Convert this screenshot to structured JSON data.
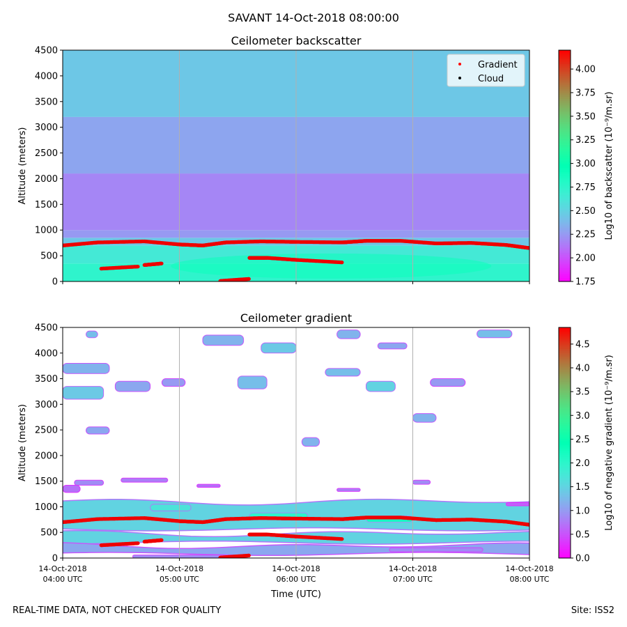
{
  "figure": {
    "suptitle": "SAVANT 14-Oct-2018 08:00:00",
    "footer_left": "REAL-TIME DATA, NOT CHECKED FOR QUALITY",
    "footer_right": "Site: ISS2"
  },
  "chart_data": [
    {
      "type": "heatmap",
      "title": "Ceilometer backscatter",
      "ylabel": "Altitude (meters)",
      "xlabel": "",
      "xlim_hours_utc": [
        4,
        8
      ],
      "ylim": [
        0,
        4500
      ],
      "yticks": [
        0,
        500,
        1000,
        1500,
        2000,
        2500,
        3000,
        3500,
        4000,
        4500
      ],
      "xtick_hours": [
        4,
        5,
        6,
        7,
        8
      ],
      "vertical_grid": true,
      "colorbar": {
        "label": "Log10 of backscatter (10⁻⁹/m.sr)",
        "range": [
          1.75,
          4.2
        ],
        "ticks": [
          "1.75",
          "2.00",
          "2.25",
          "2.50",
          "2.75",
          "3.00",
          "3.25",
          "3.50",
          "3.75",
          "4.00"
        ],
        "colormap": "rainbow"
      },
      "legend": {
        "placement": "upper-right",
        "entries": [
          {
            "label": "Gradient",
            "color": "#ff0000"
          },
          {
            "label": "Cloud",
            "color": "#000000"
          }
        ]
      },
      "layers": [
        {
          "alt_range": [
            0,
            350
          ],
          "value": 2.75
        },
        {
          "alt_range": [
            350,
            700
          ],
          "value": 2.65
        },
        {
          "alt_range": [
            700,
            850
          ],
          "value": 2.45
        },
        {
          "alt_range": [
            850,
            1000
          ],
          "value": 2.25
        },
        {
          "alt_range": [
            1000,
            2100
          ],
          "value": 2.18
        },
        {
          "alt_range": [
            2100,
            3200
          ],
          "value": 2.3
        },
        {
          "alt_range": [
            3200,
            4500
          ],
          "value": 2.45
        }
      ],
      "gradient_points": {
        "main_layer": [
          [
            4.0,
            700
          ],
          [
            4.3,
            760
          ],
          [
            4.7,
            780
          ],
          [
            5.0,
            720
          ],
          [
            5.2,
            700
          ],
          [
            5.4,
            760
          ],
          [
            5.7,
            780
          ],
          [
            6.0,
            770
          ],
          [
            6.4,
            760
          ],
          [
            6.6,
            790
          ],
          [
            6.9,
            790
          ],
          [
            7.2,
            740
          ],
          [
            7.5,
            750
          ],
          [
            7.8,
            710
          ],
          [
            8.0,
            650
          ]
        ],
        "lower_layer_1": [
          [
            4.33,
            250
          ],
          [
            4.65,
            290
          ]
        ],
        "lower_layer_2": [
          [
            4.7,
            320
          ],
          [
            4.85,
            350
          ]
        ],
        "lower_layer_3": [
          [
            5.6,
            460
          ],
          [
            5.75,
            460
          ],
          [
            6.0,
            420
          ],
          [
            6.4,
            370
          ]
        ],
        "near_ground": [
          [
            5.35,
            10
          ],
          [
            5.6,
            50
          ]
        ]
      }
    },
    {
      "type": "heatmap",
      "title": "Ceilometer gradient",
      "ylabel": "Altitude (meters)",
      "xlabel": "Time (UTC)",
      "xlim_hours_utc": [
        4,
        8
      ],
      "ylim": [
        0,
        4500
      ],
      "yticks": [
        0,
        500,
        1000,
        1500,
        2000,
        2500,
        3000,
        3500,
        4000,
        4500
      ],
      "xtick_hours": [
        4,
        5,
        6,
        7,
        8
      ],
      "xtick_labels": [
        [
          "14-Oct-2018",
          "04:00 UTC"
        ],
        [
          "14-Oct-2018",
          "05:00 UTC"
        ],
        [
          "14-Oct-2018",
          "06:00 UTC"
        ],
        [
          "14-Oct-2018",
          "07:00 UTC"
        ],
        [
          "14-Oct-2018",
          "08:00 UTC"
        ]
      ],
      "vertical_grid": true,
      "colorbar": {
        "label": "Log10 of negative gradient (10⁻⁹/m.sr)",
        "range": [
          0.0,
          4.85
        ],
        "ticks": [
          "0.0",
          "0.5",
          "1.0",
          "1.5",
          "2.0",
          "2.5",
          "3.0",
          "3.5",
          "4.0",
          "4.5"
        ],
        "colormap": "rainbow"
      },
      "bands": [
        {
          "t": [
            4.0,
            8.0
          ],
          "alt": [
            560,
            1100
          ],
          "value": 1.5,
          "wavy": true
        },
        {
          "t": [
            4.0,
            8.0
          ],
          "alt": [
            300,
            480
          ],
          "value": 1.5,
          "wavy": true
        },
        {
          "t": [
            4.0,
            8.0
          ],
          "alt": [
            80,
            240
          ],
          "value": 1.1,
          "wavy": true
        }
      ],
      "patches": [
        {
          "t": [
            4.0,
            4.4
          ],
          "alt": [
            3600,
            3800
          ],
          "value": 1.2
        },
        {
          "t": [
            4.0,
            4.35
          ],
          "alt": [
            3100,
            3350
          ],
          "value": 1.4
        },
        {
          "t": [
            4.2,
            4.3
          ],
          "alt": [
            4300,
            4430
          ],
          "value": 1.3
        },
        {
          "t": [
            4.45,
            4.75
          ],
          "alt": [
            3250,
            3450
          ],
          "value": 1.1
        },
        {
          "t": [
            4.85,
            5.05
          ],
          "alt": [
            3350,
            3500
          ],
          "value": 1.0
        },
        {
          "t": [
            5.2,
            5.55
          ],
          "alt": [
            4150,
            4350
          ],
          "value": 1.2
        },
        {
          "t": [
            5.5,
            5.75
          ],
          "alt": [
            3300,
            3550
          ],
          "value": 1.3
        },
        {
          "t": [
            5.7,
            6.0
          ],
          "alt": [
            4000,
            4200
          ],
          "value": 1.4
        },
        {
          "t": [
            6.05,
            6.2
          ],
          "alt": [
            2180,
            2350
          ],
          "value": 1.2
        },
        {
          "t": [
            6.25,
            6.55
          ],
          "alt": [
            3550,
            3700
          ],
          "value": 1.3
        },
        {
          "t": [
            6.35,
            6.55
          ],
          "alt": [
            4280,
            4450
          ],
          "value": 1.2
        },
        {
          "t": [
            6.6,
            6.85
          ],
          "alt": [
            3250,
            3450
          ],
          "value": 1.5
        },
        {
          "t": [
            6.7,
            6.95
          ],
          "alt": [
            4080,
            4200
          ],
          "value": 1.1
        },
        {
          "t": [
            7.0,
            7.2
          ],
          "alt": [
            2650,
            2820
          ],
          "value": 1.2
        },
        {
          "t": [
            7.15,
            7.45
          ],
          "alt": [
            3350,
            3500
          ],
          "value": 1.0
        },
        {
          "t": [
            7.55,
            7.85
          ],
          "alt": [
            4300,
            4450
          ],
          "value": 1.3
        },
        {
          "t": [
            4.2,
            4.4
          ],
          "alt": [
            2420,
            2560
          ],
          "value": 1.1
        },
        {
          "t": [
            4.1,
            4.35
          ],
          "alt": [
            1420,
            1520
          ],
          "value": 0.9
        },
        {
          "t": [
            4.5,
            4.9
          ],
          "alt": [
            1480,
            1560
          ],
          "value": 0.8
        },
        {
          "t": [
            5.15,
            5.35
          ],
          "alt": [
            1380,
            1440
          ],
          "value": 0.7
        },
        {
          "t": [
            6.35,
            6.55
          ],
          "alt": [
            1300,
            1360
          ],
          "value": 0.8
        },
        {
          "t": [
            7.0,
            7.15
          ],
          "alt": [
            1440,
            1520
          ],
          "value": 0.9
        },
        {
          "t": [
            4.75,
            5.1
          ],
          "alt": [
            920,
            1050
          ],
          "value": 1.7
        },
        {
          "t": [
            5.6,
            6.1
          ],
          "alt": [
            760,
            880
          ],
          "value": 2.0
        },
        {
          "t": [
            6.6,
            7.0
          ],
          "alt": [
            700,
            820
          ],
          "value": 2.2
        },
        {
          "t": [
            4.6,
            5.4
          ],
          "alt": [
            0,
            60
          ],
          "value": 0.9
        },
        {
          "t": [
            6.8,
            7.6
          ],
          "alt": [
            120,
            200
          ],
          "value": 0.9
        },
        {
          "t": [
            4.0,
            4.15
          ],
          "alt": [
            1280,
            1420
          ],
          "value": 0.7
        },
        {
          "t": [
            7.8,
            8.0
          ],
          "alt": [
            1020,
            1080
          ],
          "value": 0.6
        }
      ],
      "gradient_points": {
        "main_layer": [
          [
            4.0,
            700
          ],
          [
            4.3,
            760
          ],
          [
            4.7,
            780
          ],
          [
            5.0,
            720
          ],
          [
            5.2,
            700
          ],
          [
            5.4,
            760
          ],
          [
            5.7,
            780
          ],
          [
            6.0,
            770
          ],
          [
            6.4,
            760
          ],
          [
            6.6,
            790
          ],
          [
            6.9,
            790
          ],
          [
            7.2,
            740
          ],
          [
            7.5,
            750
          ],
          [
            7.8,
            710
          ],
          [
            8.0,
            650
          ]
        ],
        "lower_layer_1": [
          [
            4.33,
            250
          ],
          [
            4.65,
            290
          ]
        ],
        "lower_layer_2": [
          [
            4.7,
            320
          ],
          [
            4.85,
            350
          ]
        ],
        "lower_layer_3": [
          [
            5.6,
            460
          ],
          [
            5.75,
            460
          ],
          [
            6.0,
            420
          ],
          [
            6.4,
            370
          ]
        ],
        "near_ground": [
          [
            5.35,
            10
          ],
          [
            5.6,
            50
          ]
        ]
      }
    }
  ]
}
